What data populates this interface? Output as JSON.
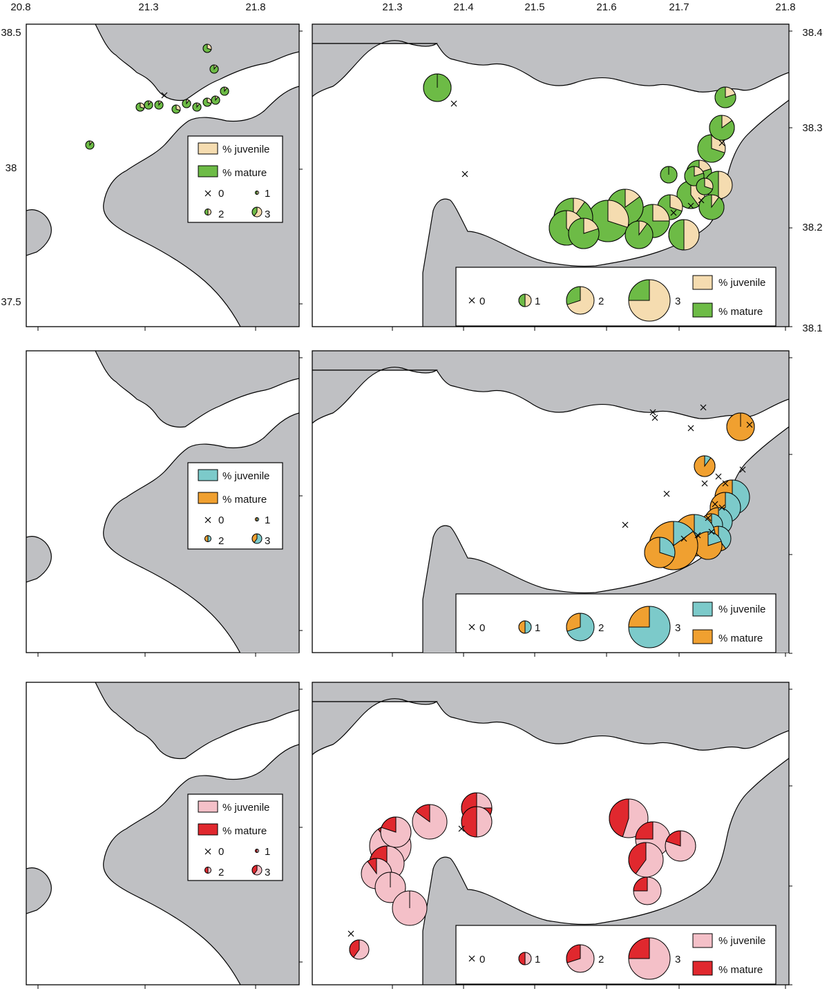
{
  "axes": {
    "top_left_lon": [
      "20.8",
      "21.3",
      "21.8"
    ],
    "top_right_lon": [
      "21.3",
      "21.4",
      "21.5",
      "21.6",
      "21.7",
      "21.8"
    ],
    "left_lat": [
      "38.5",
      "38",
      "37.5"
    ],
    "right_lat": [
      "38.4",
      "38.3",
      "38.2",
      "38.1"
    ]
  },
  "rows": [
    {
      "juvenile_color": "#f5dcb0",
      "mature_color": "#6dbb46",
      "legend_small": {
        "juvenile": "% juvenile",
        "mature": "% mature",
        "c0": "0",
        "c1": "1",
        "c2": "2",
        "c3": "3"
      },
      "legend_large": {
        "c0": "0",
        "c1": "1",
        "c2": "2",
        "c3": "3",
        "juvenile": "% juvenile",
        "mature": "% mature"
      }
    },
    {
      "juvenile_color": "#7ccaca",
      "mature_color": "#f0a030",
      "legend_small": {
        "juvenile": "% juvenile",
        "mature": "% mature",
        "c0": "0",
        "c1": "1",
        "c2": "2",
        "c3": "3"
      },
      "legend_large": {
        "c0": "0",
        "c1": "1",
        "c2": "2",
        "c3": "3",
        "juvenile": "% juvenile",
        "mature": "% mature"
      }
    },
    {
      "juvenile_color": "#f4c0c8",
      "mature_color": "#e0282e",
      "legend_small": {
        "juvenile": "% juvenile",
        "mature": "% mature",
        "c0": "0",
        "c1": "1",
        "c2": "2",
        "c3": "3"
      },
      "legend_large": {
        "c0": "0",
        "c1": "1",
        "c2": "2",
        "c3": "3",
        "juvenile": "% juvenile",
        "mature": "% mature"
      }
    }
  ]
}
